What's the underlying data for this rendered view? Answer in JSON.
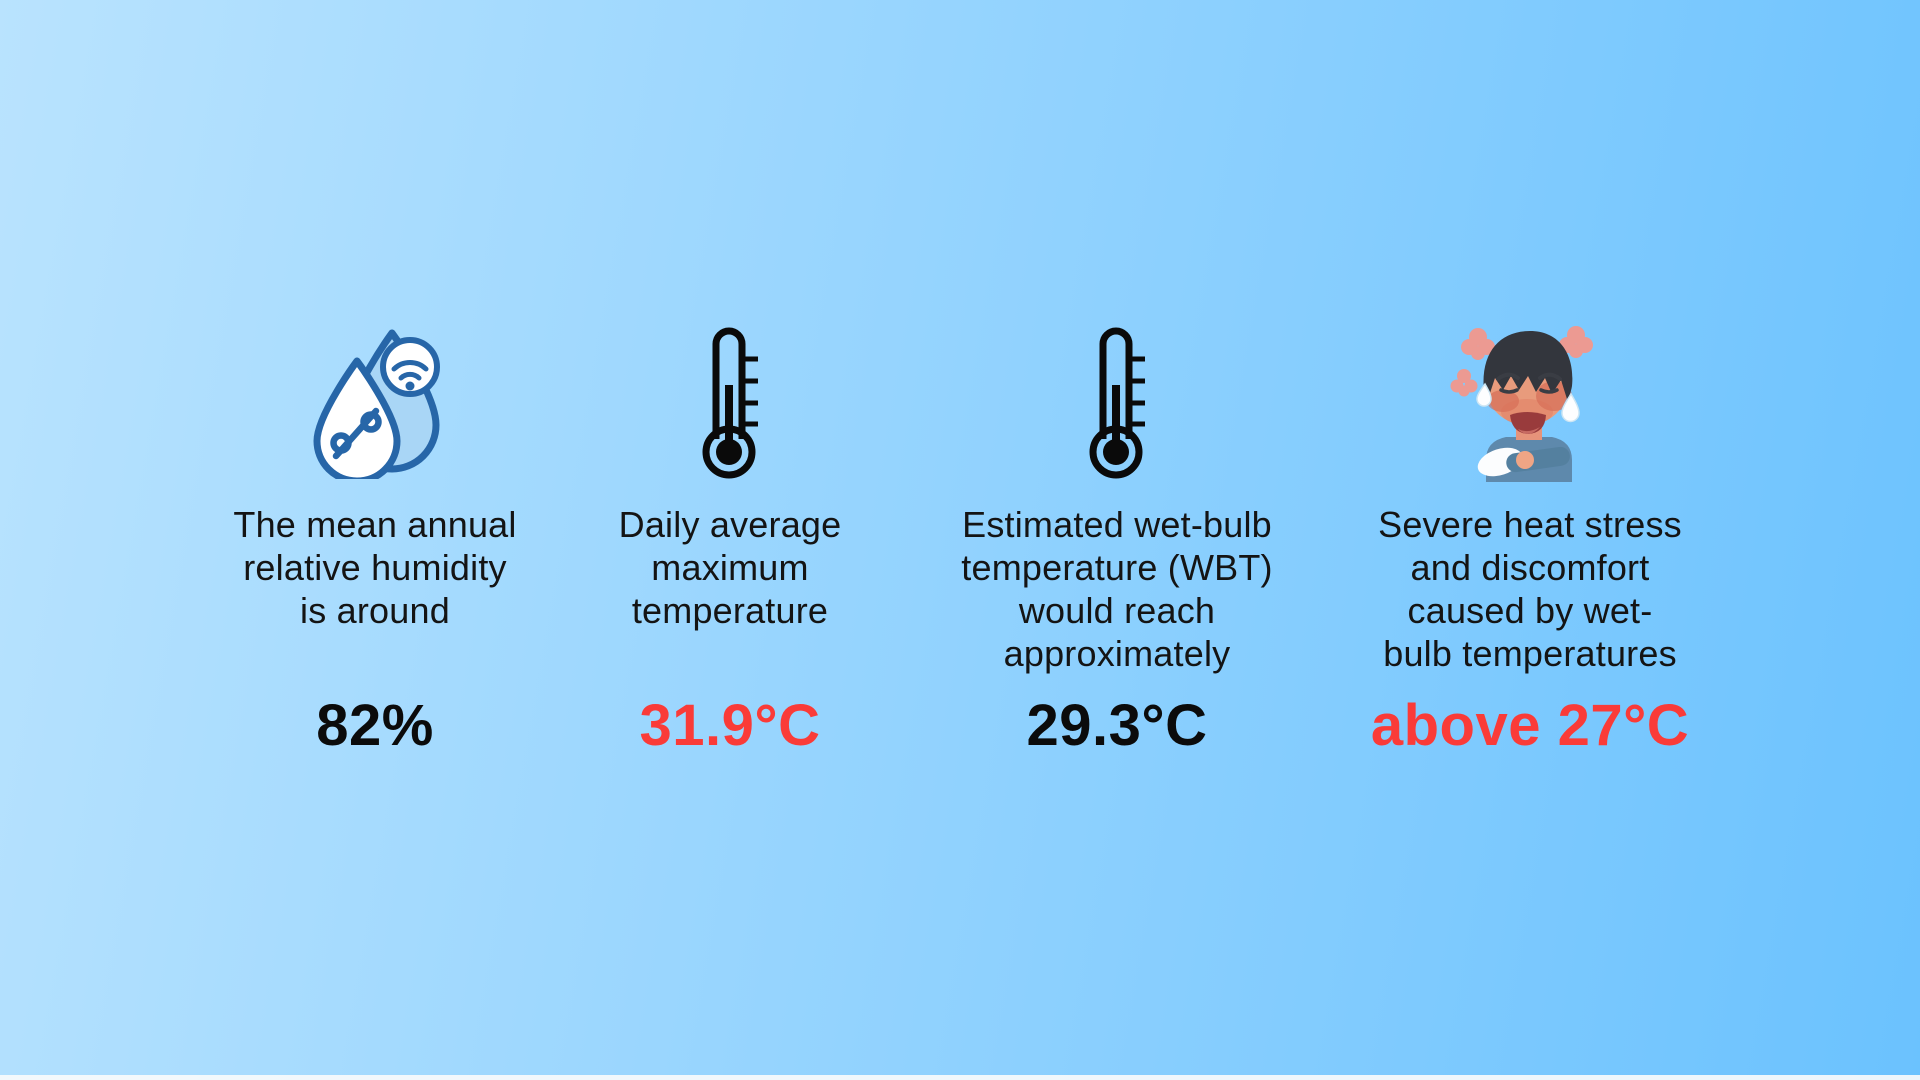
{
  "colors": {
    "bg_gradient_start": "#B9E3FE",
    "bg_gradient_end": "#6BC2FE",
    "accent_red": "#FA3B38",
    "text_black": "#0B0B0B",
    "icon_stroke_blue": "#2766A8",
    "icon_fill_light_blue": "#A9D6F6"
  },
  "cards": [
    {
      "icon": "humidity-droplets-icon",
      "caption_lines": [
        "The mean annual",
        "relative humidity",
        "is around"
      ],
      "value": "82%",
      "value_color": "#0B0B0B"
    },
    {
      "icon": "thermometer-icon",
      "caption_lines": [
        "Daily average",
        "maximum",
        "temperature"
      ],
      "value": "31.9°C",
      "value_color": "#FA3B38"
    },
    {
      "icon": "thermometer-icon",
      "caption_lines": [
        "Estimated wet-bulb",
        "temperature (WBT)",
        "would reach",
        "approximately"
      ],
      "value": "29.3°C",
      "value_color": "#0B0B0B"
    },
    {
      "icon": "overheated-person-icon",
      "caption_lines": [
        "Severe heat stress",
        "and discomfort",
        "caused by wet-",
        "bulb temperatures"
      ],
      "value": "above 27°C",
      "value_color": "#FA3B38"
    }
  ]
}
